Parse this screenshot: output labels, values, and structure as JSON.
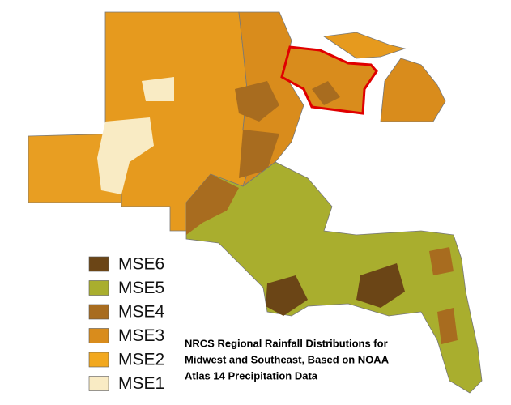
{
  "legend": [
    {
      "label": "MSE6",
      "color": "#6b4516"
    },
    {
      "label": "MSE5",
      "color": "#a9ae2e"
    },
    {
      "label": "MSE4",
      "color": "#a86c1f"
    },
    {
      "label": "MSE3",
      "color": "#d98c1c"
    },
    {
      "label": "MSE2",
      "color": "#f2a81e"
    },
    {
      "label": "MSE1",
      "color": "#f9ebc4"
    }
  ],
  "caption": {
    "lines": [
      "NRCS Regional Rainfall Distributions for",
      "Midwest and Southeast, Based on NOAA",
      "Atlas 14 Precipitation Data"
    ]
  }
}
